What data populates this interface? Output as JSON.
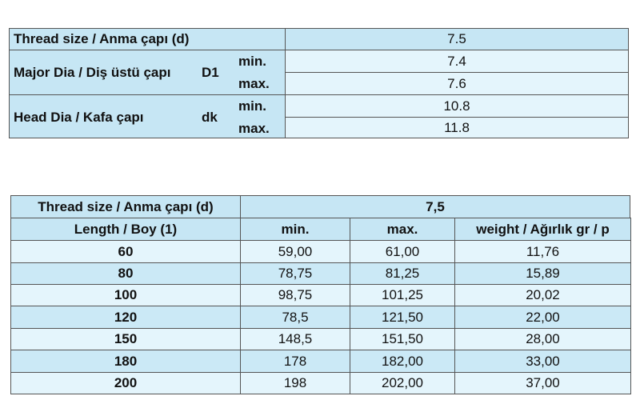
{
  "table1": {
    "header": {
      "label": "Thread size / Anma çapı (d)",
      "value": "7.5"
    },
    "rows": [
      {
        "label": "Major Dia / Diş üstü çapı",
        "symbol": "D1",
        "min_label": "min.",
        "min": "7.4",
        "max_label": "max.",
        "max": "7.6"
      },
      {
        "label": "Head Dia / Kafa çapı",
        "symbol": "dk",
        "min_label": "min.",
        "min": "10.8",
        "max_label": "max.",
        "max": "11.8"
      }
    ]
  },
  "table2": {
    "title": "Thread size / Anma çapı (d)",
    "size": "7,5",
    "columns": [
      "Length / Boy (1)",
      "min.",
      "max.",
      "weight / Ağırlık gr / p"
    ],
    "rows": [
      [
        "60",
        "59,00",
        "61,00",
        "11,76"
      ],
      [
        "80",
        "78,75",
        "81,25",
        "15,89"
      ],
      [
        "100",
        "98,75",
        "101,25",
        "20,02"
      ],
      [
        "120",
        "78,5",
        "121,50",
        "22,00"
      ],
      [
        "150",
        "148,5",
        "151,50",
        "28,00"
      ],
      [
        "180",
        "178",
        "182,00",
        "33,00"
      ],
      [
        "200",
        "198",
        "202,00",
        "37,00"
      ]
    ]
  }
}
